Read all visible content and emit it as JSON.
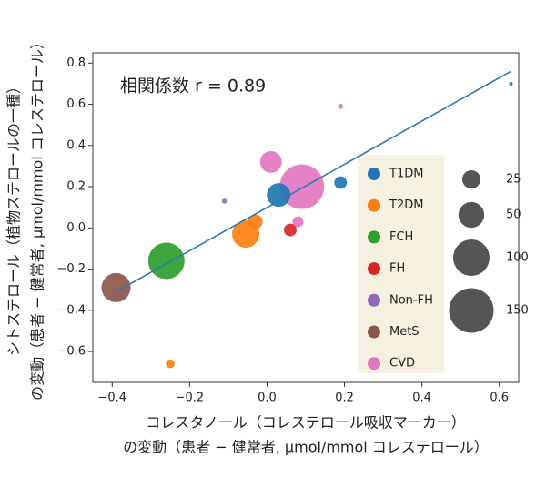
{
  "chart_data": {
    "type": "scatter",
    "annotation": "相関係数 r = 0.89",
    "xlabel": [
      "コレスタノール（コレステロール吸収マーカー）",
      "の変動（患者 − 健常者, μmol/mmol コレステロール）"
    ],
    "ylabel": [
      "シトステロール（植物ステロールの一種）",
      "の変動（患者 − 健常者, μmol/mmol コレステロール）"
    ],
    "xlim": [
      -0.45,
      0.65
    ],
    "ylim": [
      -0.75,
      0.85
    ],
    "xticks": [
      {
        "value": -0.4,
        "label": "−0.4"
      },
      {
        "value": -0.2,
        "label": "−0.2"
      },
      {
        "value": 0,
        "label": "0.0"
      },
      0.2,
      0.4,
      0.6
    ],
    "yticks": [
      {
        "value": -0.6,
        "label": "−0.6"
      },
      {
        "value": -0.4,
        "label": "−0.4"
      },
      {
        "value": -0.2,
        "label": "−0.2"
      },
      {
        "value": 0,
        "label": "0.0"
      },
      0.2,
      0.4,
      0.6,
      0.8
    ],
    "series": [
      {
        "name": "T1DM",
        "color": "#1f77b4",
        "x": [
          0.03,
          0.19,
          0.63
        ],
        "y": [
          0.16,
          0.22,
          0.7
        ],
        "size": [
          42,
          12,
          1
        ]
      },
      {
        "name": "T2DM",
        "color": "#ff7f0e",
        "x": [
          -0.055,
          -0.03,
          -0.25
        ],
        "y": [
          -0.03,
          0.03,
          -0.66
        ],
        "size": [
          56,
          16,
          6
        ]
      },
      {
        "name": "FCH",
        "color": "#2ca02c",
        "x": [
          -0.26
        ],
        "y": [
          -0.16
        ],
        "size": [
          100
        ]
      },
      {
        "name": "FH",
        "color": "#d62728",
        "x": [
          0.06
        ],
        "y": [
          -0.01
        ],
        "size": [
          12
        ]
      },
      {
        "name": "Non-FH",
        "color": "#9467bd",
        "x": [
          -0.11
        ],
        "y": [
          0.13
        ],
        "size": [
          2
        ]
      },
      {
        "name": "MetS",
        "color": "#8c564b",
        "x": [
          -0.39
        ],
        "y": [
          -0.29
        ],
        "size": [
          64
        ]
      },
      {
        "name": "CVD",
        "color": "#e377c2",
        "x": [
          0.09,
          0.01,
          0.08,
          0.19
        ],
        "y": [
          0.2,
          0.32,
          0.03,
          0.59
        ],
        "size": [
          150,
          36,
          9,
          2
        ]
      }
    ],
    "trend_line": {
      "color": "#2a7ab0",
      "x": [
        -0.39,
        0.63
      ],
      "y": [
        -0.31,
        0.76
      ]
    },
    "size_legend": [
      25,
      50,
      100,
      150
    ],
    "size_legend_color": "#555555",
    "legend_background": "#f6f0e1"
  }
}
